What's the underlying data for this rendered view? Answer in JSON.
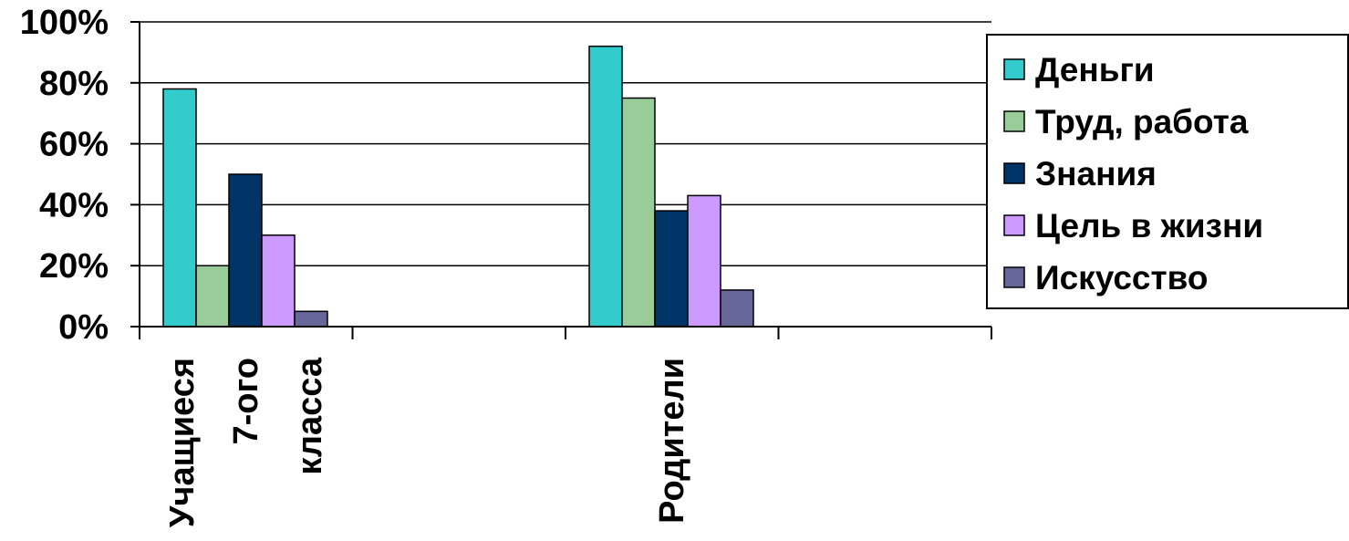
{
  "chart_data": {
    "type": "bar",
    "categories": [
      [
        "Учащиеся",
        "7-ого",
        "класса"
      ],
      [
        "Родители"
      ]
    ],
    "y_ticks": [
      "0%",
      "20%",
      "40%",
      "60%",
      "80%",
      "100%"
    ],
    "ylim": [
      0,
      100
    ],
    "grid": true,
    "legend_position": "right",
    "series": [
      {
        "name": "Деньги",
        "color": "#33CCCC",
        "values": [
          78,
          92
        ]
      },
      {
        "name": "Труд, работа",
        "color": "#99CC99",
        "values": [
          20,
          75
        ]
      },
      {
        "name": "Знания",
        "color": "#003366",
        "values": [
          50,
          38
        ]
      },
      {
        "name": "Цель в жизни",
        "color": "#CC99FF",
        "values": [
          30,
          43
        ]
      },
      {
        "name": "Искусство",
        "color": "#666699",
        "values": [
          5,
          12
        ]
      }
    ]
  }
}
